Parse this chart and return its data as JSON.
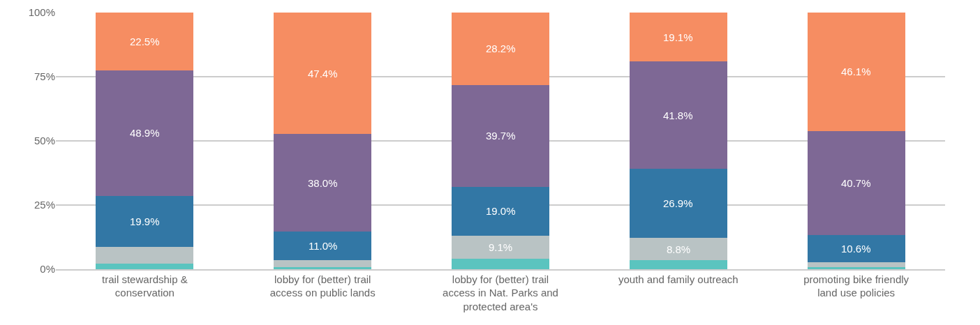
{
  "chart_data": {
    "type": "bar",
    "stacked": true,
    "categories": [
      "trail stewardship & conservation",
      "lobby for (better) trail access on public lands",
      "lobby for (better) trail access in Nat. Parks and protected area's",
      "youth and family outreach",
      "promoting bike friendly land use policies"
    ],
    "series": [
      {
        "color": "#5bc4bf",
        "values": [
          2.1,
          0.7,
          4.0,
          3.4,
          0.7
        ],
        "value_labels": [
          null,
          null,
          null,
          null,
          null
        ]
      },
      {
        "color": "#b9c3c4",
        "values": [
          6.6,
          2.9,
          9.1,
          8.8,
          1.9
        ],
        "value_labels": [
          null,
          null,
          "9.1%",
          "8.8%",
          null
        ]
      },
      {
        "color": "#3277a5",
        "values": [
          19.9,
          11.0,
          19.0,
          26.9,
          10.6
        ],
        "value_labels": [
          "19.9%",
          "11.0%",
          "19.0%",
          "26.9%",
          "10.6%"
        ]
      },
      {
        "color": "#7e6895",
        "values": [
          48.9,
          38.0,
          39.7,
          41.8,
          40.7
        ],
        "value_labels": [
          "48.9%",
          "38.0%",
          "39.7%",
          "41.8%",
          "40.7%"
        ]
      },
      {
        "color": "#f68d62",
        "values": [
          22.5,
          47.4,
          28.2,
          19.1,
          46.1
        ],
        "value_labels": [
          "22.5%",
          "47.4%",
          "28.2%",
          "19.1%",
          "46.1%"
        ]
      }
    ],
    "ylim": [
      0,
      100
    ],
    "yticks": [
      {
        "value": 0,
        "label": "0%"
      },
      {
        "value": 25,
        "label": "25%"
      },
      {
        "value": 50,
        "label": "50%"
      },
      {
        "value": 75,
        "label": "75%"
      },
      {
        "value": 100,
        "label": "100%"
      }
    ],
    "grid": "y"
  }
}
